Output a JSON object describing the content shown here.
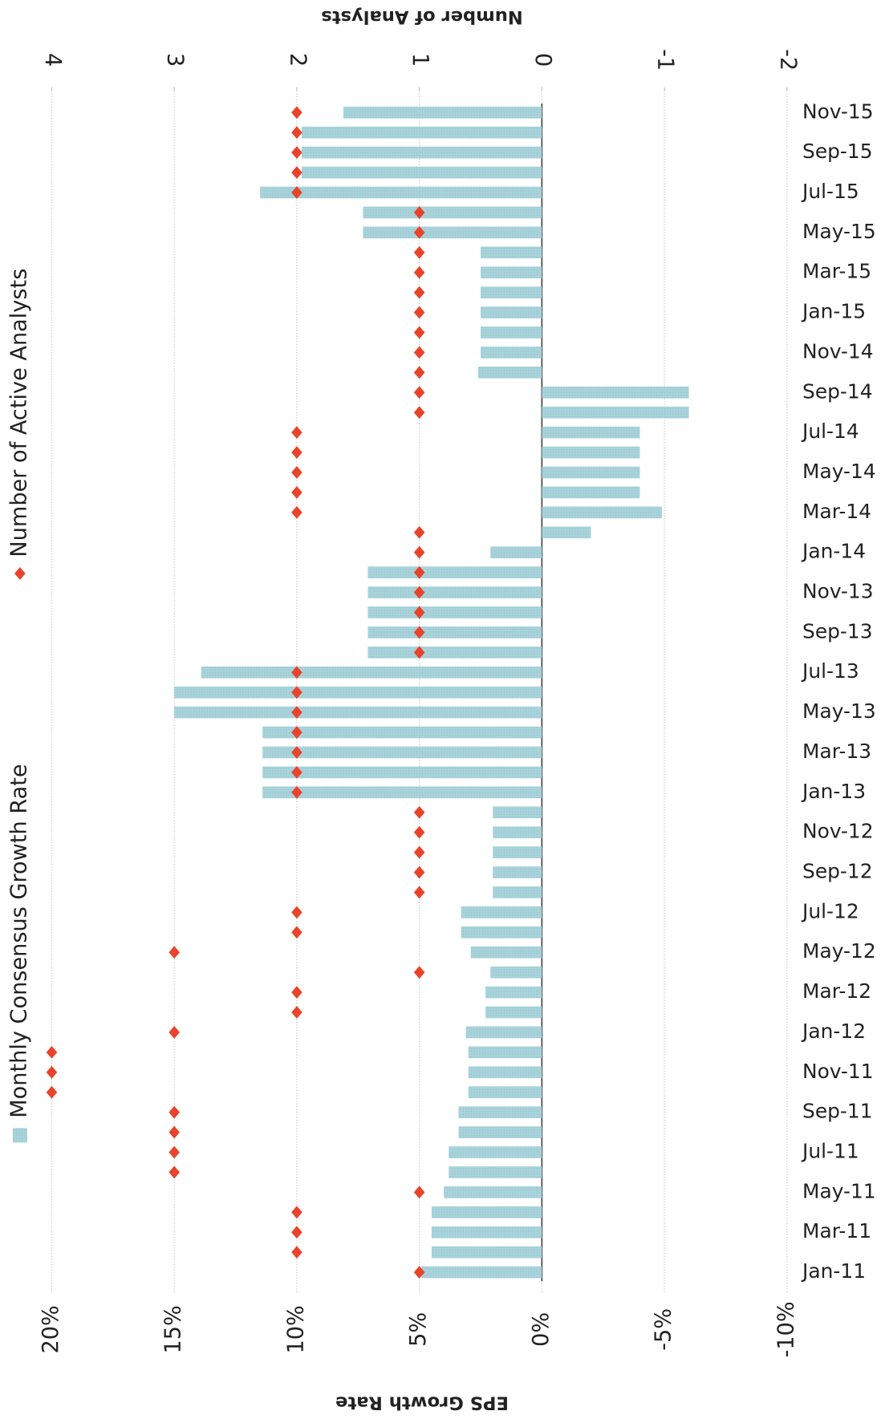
{
  "chart_data": {
    "type": "bar",
    "xlabel": "EPS Growth Rate",
    "y2label": "Number of Analysts",
    "categories": [
      "Jan-11",
      null,
      "Mar-11",
      null,
      "May-11",
      null,
      "Jul-11",
      null,
      "Sep-11",
      null,
      "Nov-11",
      null,
      "Jan-12",
      null,
      "Mar-12",
      null,
      "May-12",
      null,
      "Jul-12",
      null,
      "Sep-12",
      null,
      "Nov-12",
      null,
      "Jan-13",
      null,
      "Mar-13",
      null,
      "May-13",
      null,
      "Jul-13",
      null,
      "Sep-13",
      null,
      "Nov-13",
      null,
      "Jan-14",
      null,
      "Mar-14",
      null,
      "May-14",
      null,
      "Jul-14",
      null,
      "Sep-14",
      null,
      "Nov-14",
      null,
      "Jan-15",
      null,
      "Mar-15",
      null,
      "May-15",
      null,
      "Jul-15",
      null,
      "Sep-15",
      null,
      "Nov-15"
    ],
    "series": [
      {
        "name": "Monthly Consensus Growth Rate",
        "type": "bar",
        "color": "#a9d3db",
        "values": [
          4.9,
          4.5,
          4.5,
          4.5,
          4.0,
          3.8,
          3.8,
          3.4,
          3.4,
          3.0,
          3.0,
          3.0,
          3.1,
          2.3,
          2.3,
          2.1,
          2.9,
          3.3,
          3.3,
          2.0,
          2.0,
          2.0,
          2.0,
          2.0,
          11.4,
          11.4,
          11.4,
          11.4,
          15.0,
          15.0,
          13.9,
          7.1,
          7.1,
          7.1,
          7.1,
          7.1,
          2.1,
          -2.0,
          -4.9,
          -4.0,
          -4.0,
          -4.0,
          -4.0,
          -6.0,
          -6.0,
          2.6,
          2.5,
          2.5,
          2.5,
          2.5,
          2.5,
          2.5,
          7.3,
          7.3,
          11.5,
          9.8,
          9.8,
          9.8,
          8.1
        ]
      },
      {
        "name": "Number of Active Analysts",
        "type": "scatter",
        "axis": "y2",
        "color": "#e8442b",
        "values": [
          1,
          2,
          2,
          2,
          1,
          3,
          3,
          3,
          3,
          4,
          4,
          4,
          3,
          2,
          2,
          1,
          3,
          2,
          2,
          1,
          1,
          1,
          1,
          1,
          2,
          2,
          2,
          2,
          2,
          2,
          2,
          1,
          1,
          1,
          1,
          1,
          1,
          1,
          2,
          2,
          2,
          2,
          2,
          1,
          1,
          1,
          1,
          1,
          1,
          1,
          1,
          1,
          1,
          1,
          2,
          2,
          2,
          2,
          2
        ]
      }
    ],
    "ylim": [
      20,
      -10
    ],
    "yticks": [
      {
        "value": 20,
        "label": "20%"
      },
      {
        "value": 15,
        "label": "15%"
      },
      {
        "value": 10,
        "label": "10%"
      },
      {
        "value": 5,
        "label": "5%"
      },
      {
        "value": 0,
        "label": "0%"
      },
      {
        "value": -5,
        "label": "-5%"
      },
      {
        "value": -10,
        "label": "-10%"
      }
    ],
    "y2lim": [
      4,
      -2
    ],
    "y2ticks": [
      4,
      3,
      2,
      1,
      0,
      -1,
      -2
    ],
    "grid": true
  }
}
